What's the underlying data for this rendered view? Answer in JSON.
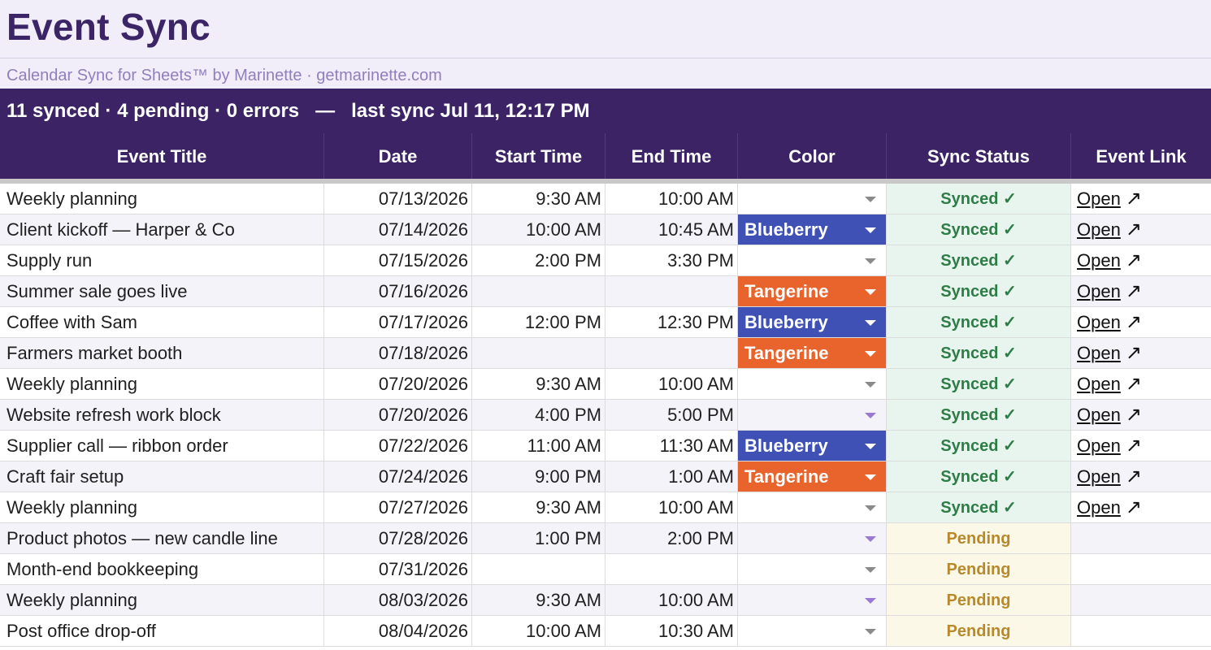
{
  "header": {
    "title": "Event Sync",
    "subtitle": "Calendar Sync for Sheets™ by Marinette · getmarinette.com",
    "summary": "11 synced · 4 pending · 0 errors   —   last sync Jul 11, 12:17 PM"
  },
  "columns": [
    "Event Title",
    "Date",
    "Start Time",
    "End Time",
    "Color",
    "Sync Status",
    "Event Link"
  ],
  "colors": {
    "Blueberry": "#3f51b5",
    "Tangerine": "#e8642c",
    "synced": "#2e7d46",
    "pending": "#b8892a",
    "header_bg": "#3b2366"
  },
  "rows": [
    {
      "title": "Weekly planning",
      "date": "07/13/2026",
      "start": "9:30 AM",
      "end": "10:00 AM",
      "color": "",
      "caret": "gray",
      "status": "Synced ✓",
      "link": "Open"
    },
    {
      "title": "Client kickoff — Harper & Co",
      "date": "07/14/2026",
      "start": "10:00 AM",
      "end": "10:45 AM",
      "color": "Blueberry",
      "caret": "white",
      "status": "Synced ✓",
      "link": "Open"
    },
    {
      "title": "Supply run",
      "date": "07/15/2026",
      "start": "2:00 PM",
      "end": "3:30 PM",
      "color": "",
      "caret": "gray",
      "status": "Synced ✓",
      "link": "Open"
    },
    {
      "title": "Summer sale goes live",
      "date": "07/16/2026",
      "start": "",
      "end": "",
      "color": "Tangerine",
      "caret": "white",
      "status": "Synced ✓",
      "link": "Open"
    },
    {
      "title": "Coffee with Sam",
      "date": "07/17/2026",
      "start": "12:00 PM",
      "end": "12:30 PM",
      "color": "Blueberry",
      "caret": "white",
      "status": "Synced ✓",
      "link": "Open"
    },
    {
      "title": "Farmers market booth",
      "date": "07/18/2026",
      "start": "",
      "end": "",
      "color": "Tangerine",
      "caret": "white",
      "status": "Synced ✓",
      "link": "Open"
    },
    {
      "title": "Weekly planning",
      "date": "07/20/2026",
      "start": "9:30 AM",
      "end": "10:00 AM",
      "color": "",
      "caret": "gray",
      "status": "Synced ✓",
      "link": "Open"
    },
    {
      "title": "Website refresh work block",
      "date": "07/20/2026",
      "start": "4:00 PM",
      "end": "5:00 PM",
      "color": "",
      "caret": "purple",
      "status": "Synced ✓",
      "link": "Open"
    },
    {
      "title": "Supplier call — ribbon order",
      "date": "07/22/2026",
      "start": "11:00 AM",
      "end": "11:30 AM",
      "color": "Blueberry",
      "caret": "white",
      "status": "Synced ✓",
      "link": "Open"
    },
    {
      "title": "Craft fair setup",
      "date": "07/24/2026",
      "start": "9:00 PM",
      "end": "1:00 AM",
      "color": "Tangerine",
      "caret": "white",
      "status": "Synced ✓",
      "link": "Open"
    },
    {
      "title": "Weekly planning",
      "date": "07/27/2026",
      "start": "9:30 AM",
      "end": "10:00 AM",
      "color": "",
      "caret": "gray",
      "status": "Synced ✓",
      "link": "Open"
    },
    {
      "title": "Product photos — new candle line",
      "date": "07/28/2026",
      "start": "1:00 PM",
      "end": "2:00 PM",
      "color": "",
      "caret": "purple",
      "status": "Pending",
      "link": ""
    },
    {
      "title": "Month-end bookkeeping",
      "date": "07/31/2026",
      "start": "",
      "end": "",
      "color": "",
      "caret": "gray",
      "status": "Pending",
      "link": ""
    },
    {
      "title": "Weekly planning",
      "date": "08/03/2026",
      "start": "9:30 AM",
      "end": "10:00 AM",
      "color": "",
      "caret": "purple",
      "status": "Pending",
      "link": ""
    },
    {
      "title": "Post office drop-off",
      "date": "08/04/2026",
      "start": "10:00 AM",
      "end": "10:30 AM",
      "color": "",
      "caret": "gray",
      "status": "Pending",
      "link": ""
    }
  ]
}
